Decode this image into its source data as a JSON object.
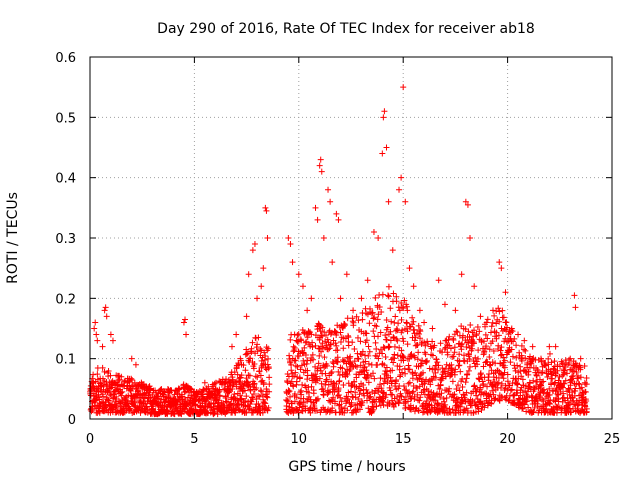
{
  "chart_data": {
    "type": "scatter",
    "title": "Day 290 of 2016, Rate Of TEC Index for receiver ab18",
    "xlabel": "GPS time / hours",
    "ylabel": "ROTI / TECUs",
    "xlim": [
      0,
      25
    ],
    "ylim": [
      0,
      0.6
    ],
    "grid": true,
    "marker": "+",
    "color": "#ff0000",
    "xticks": [
      "0",
      "5",
      "10",
      "15",
      "20",
      "25"
    ],
    "yticks": [
      "0",
      "0.1",
      "0.2",
      "0.3",
      "0.4",
      "0.5",
      "0.6"
    ],
    "series": [
      {
        "name": "ROTI",
        "points": [
          [
            0.1,
            0.05
          ],
          [
            0.2,
            0.15
          ],
          [
            0.25,
            0.16
          ],
          [
            0.3,
            0.14
          ],
          [
            0.35,
            0.13
          ],
          [
            0.4,
            0.04
          ],
          [
            0.5,
            0.06
          ],
          [
            0.6,
            0.12
          ],
          [
            0.7,
            0.18
          ],
          [
            0.75,
            0.185
          ],
          [
            0.8,
            0.17
          ],
          [
            0.9,
            0.05
          ],
          [
            1.0,
            0.14
          ],
          [
            1.1,
            0.13
          ],
          [
            1.2,
            0.06
          ],
          [
            1.5,
            0.07
          ],
          [
            1.8,
            0.06
          ],
          [
            2.0,
            0.1
          ],
          [
            2.2,
            0.09
          ],
          [
            2.5,
            0.05
          ],
          [
            3.0,
            0.04
          ],
          [
            3.5,
            0.04
          ],
          [
            4.0,
            0.03
          ],
          [
            4.5,
            0.16
          ],
          [
            4.55,
            0.165
          ],
          [
            4.6,
            0.14
          ],
          [
            4.8,
            0.05
          ],
          [
            5.0,
            0.04
          ],
          [
            5.5,
            0.06
          ],
          [
            6.0,
            0.05
          ],
          [
            6.5,
            0.06
          ],
          [
            6.8,
            0.12
          ],
          [
            7.0,
            0.14
          ],
          [
            7.2,
            0.1
          ],
          [
            7.5,
            0.17
          ],
          [
            7.6,
            0.24
          ],
          [
            7.8,
            0.28
          ],
          [
            7.9,
            0.29
          ],
          [
            8.0,
            0.2
          ],
          [
            8.2,
            0.22
          ],
          [
            8.3,
            0.25
          ],
          [
            8.4,
            0.35
          ],
          [
            8.45,
            0.345
          ],
          [
            8.5,
            0.3
          ],
          [
            9.5,
            0.3
          ],
          [
            9.6,
            0.29
          ],
          [
            9.7,
            0.26
          ],
          [
            9.8,
            0.14
          ],
          [
            10.0,
            0.24
          ],
          [
            10.2,
            0.22
          ],
          [
            10.4,
            0.18
          ],
          [
            10.6,
            0.2
          ],
          [
            10.8,
            0.35
          ],
          [
            10.9,
            0.33
          ],
          [
            11.0,
            0.42
          ],
          [
            11.05,
            0.43
          ],
          [
            11.1,
            0.41
          ],
          [
            11.2,
            0.3
          ],
          [
            11.4,
            0.38
          ],
          [
            11.5,
            0.36
          ],
          [
            11.6,
            0.26
          ],
          [
            11.8,
            0.34
          ],
          [
            11.9,
            0.33
          ],
          [
            12.0,
            0.2
          ],
          [
            12.3,
            0.24
          ],
          [
            12.6,
            0.18
          ],
          [
            13.0,
            0.2
          ],
          [
            13.3,
            0.23
          ],
          [
            13.6,
            0.31
          ],
          [
            13.8,
            0.3
          ],
          [
            14.0,
            0.44
          ],
          [
            14.05,
            0.5
          ],
          [
            14.1,
            0.51
          ],
          [
            14.2,
            0.45
          ],
          [
            14.3,
            0.36
          ],
          [
            14.5,
            0.28
          ],
          [
            14.8,
            0.38
          ],
          [
            14.9,
            0.4
          ],
          [
            15.0,
            0.55
          ],
          [
            15.1,
            0.36
          ],
          [
            15.3,
            0.25
          ],
          [
            15.5,
            0.22
          ],
          [
            15.8,
            0.18
          ],
          [
            16.0,
            0.16
          ],
          [
            16.4,
            0.15
          ],
          [
            16.7,
            0.23
          ],
          [
            17.0,
            0.19
          ],
          [
            17.5,
            0.18
          ],
          [
            17.8,
            0.24
          ],
          [
            18.0,
            0.36
          ],
          [
            18.1,
            0.355
          ],
          [
            18.2,
            0.3
          ],
          [
            18.4,
            0.22
          ],
          [
            18.7,
            0.17
          ],
          [
            19.0,
            0.16
          ],
          [
            19.3,
            0.18
          ],
          [
            19.6,
            0.26
          ],
          [
            19.7,
            0.25
          ],
          [
            19.9,
            0.21
          ],
          [
            20.2,
            0.15
          ],
          [
            20.5,
            0.14
          ],
          [
            20.8,
            0.13
          ],
          [
            21.2,
            0.12
          ],
          [
            21.6,
            0.1
          ],
          [
            22.0,
            0.12
          ],
          [
            22.3,
            0.12
          ],
          [
            22.7,
            0.09
          ],
          [
            23.0,
            0.1
          ],
          [
            23.2,
            0.205
          ],
          [
            23.25,
            0.185
          ],
          [
            23.5,
            0.1
          ],
          [
            23.7,
            0.06
          ]
        ],
        "bands": [
          [
            0.0,
            0.03,
            0.01,
            0.07
          ],
          [
            0.5,
            0.05,
            0.01,
            0.09
          ],
          [
            1.0,
            0.05,
            0.01,
            0.08
          ],
          [
            1.5,
            0.04,
            0.01,
            0.07
          ],
          [
            2.0,
            0.04,
            0.01,
            0.07
          ],
          [
            2.5,
            0.035,
            0.01,
            0.06
          ],
          [
            3.0,
            0.03,
            0.008,
            0.055
          ],
          [
            3.5,
            0.03,
            0.008,
            0.05
          ],
          [
            4.0,
            0.03,
            0.008,
            0.05
          ],
          [
            4.5,
            0.035,
            0.008,
            0.06
          ],
          [
            5.0,
            0.03,
            0.008,
            0.05
          ],
          [
            5.5,
            0.03,
            0.008,
            0.05
          ],
          [
            6.0,
            0.035,
            0.008,
            0.06
          ],
          [
            6.5,
            0.04,
            0.008,
            0.07
          ],
          [
            7.0,
            0.05,
            0.01,
            0.09
          ],
          [
            7.5,
            0.06,
            0.01,
            0.12
          ],
          [
            8.0,
            0.07,
            0.01,
            0.14
          ],
          [
            8.5,
            0.06,
            0.01,
            0.12
          ],
          [
            9.5,
            0.07,
            0.01,
            0.14
          ],
          [
            10.0,
            0.07,
            0.01,
            0.15
          ],
          [
            10.5,
            0.07,
            0.01,
            0.15
          ],
          [
            11.0,
            0.08,
            0.01,
            0.16
          ],
          [
            11.5,
            0.07,
            0.01,
            0.15
          ],
          [
            12.0,
            0.07,
            0.01,
            0.16
          ],
          [
            12.5,
            0.08,
            0.01,
            0.17
          ],
          [
            13.0,
            0.08,
            0.01,
            0.18
          ],
          [
            13.5,
            0.09,
            0.01,
            0.2
          ],
          [
            14.0,
            0.1,
            0.02,
            0.22
          ],
          [
            14.5,
            0.1,
            0.02,
            0.22
          ],
          [
            15.0,
            0.09,
            0.02,
            0.2
          ],
          [
            15.5,
            0.08,
            0.01,
            0.17
          ],
          [
            16.0,
            0.06,
            0.01,
            0.14
          ],
          [
            16.5,
            0.06,
            0.01,
            0.13
          ],
          [
            17.0,
            0.06,
            0.01,
            0.13
          ],
          [
            17.5,
            0.07,
            0.01,
            0.15
          ],
          [
            18.0,
            0.08,
            0.01,
            0.16
          ],
          [
            18.5,
            0.08,
            0.01,
            0.15
          ],
          [
            19.0,
            0.09,
            0.02,
            0.17
          ],
          [
            19.5,
            0.1,
            0.03,
            0.19
          ],
          [
            20.0,
            0.09,
            0.03,
            0.17
          ],
          [
            20.5,
            0.07,
            0.02,
            0.13
          ],
          [
            21.0,
            0.06,
            0.01,
            0.11
          ],
          [
            21.5,
            0.05,
            0.01,
            0.1
          ],
          [
            22.0,
            0.06,
            0.01,
            0.11
          ],
          [
            22.5,
            0.05,
            0.01,
            0.1
          ],
          [
            23.0,
            0.05,
            0.01,
            0.1
          ],
          [
            23.5,
            0.05,
            0.01,
            0.09
          ]
        ]
      }
    ]
  }
}
